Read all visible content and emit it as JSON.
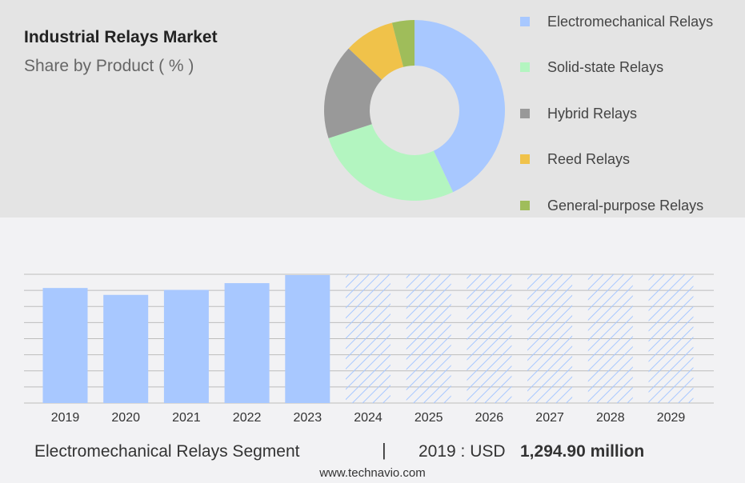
{
  "header": {
    "title": "Industrial Relays Market",
    "subtitle": "Share by Product ( % )"
  },
  "chart_data": [
    {
      "type": "pie",
      "donut": true,
      "title": "Industrial Relays Market",
      "subtitle": "Share by Product ( % )",
      "legend_position": "right",
      "slices": [
        {
          "label": "Electromechanical Relays",
          "value": 43,
          "color": "#a8c8ff"
        },
        {
          "label": "Solid-state Relays",
          "value": 27,
          "color": "#b3f5c0"
        },
        {
          "label": "Hybrid Relays",
          "value": 17,
          "color": "#999999"
        },
        {
          "label": "Reed Relays",
          "value": 9,
          "color": "#f0c24a"
        },
        {
          "label": "General-purpose Relays",
          "value": 4,
          "color": "#9fbd5a"
        }
      ]
    },
    {
      "type": "bar",
      "series_name": "Electromechanical Relays Segment",
      "categories": [
        "2019",
        "2020",
        "2021",
        "2022",
        "2023",
        "2024",
        "2025",
        "2026",
        "2027",
        "2028",
        "2029"
      ],
      "values": [
        1294.9,
        1252,
        1283,
        1325,
        1375,
        null,
        null,
        null,
        null,
        null,
        null
      ],
      "forecast_years": [
        "2024",
        "2025",
        "2026",
        "2027",
        "2028",
        "2029"
      ],
      "ylim": [
        580,
        1380
      ],
      "grid": true,
      "bar_color": "#a8c8ff",
      "forecast_hatch_color": "#a8c8ff"
    }
  ],
  "footer": {
    "segment_label": "Electromechanical Relays Segment",
    "separator": "|",
    "year_label": "2019 : USD",
    "value_label": "1,294.90 million"
  },
  "source": "www.technavio.com"
}
